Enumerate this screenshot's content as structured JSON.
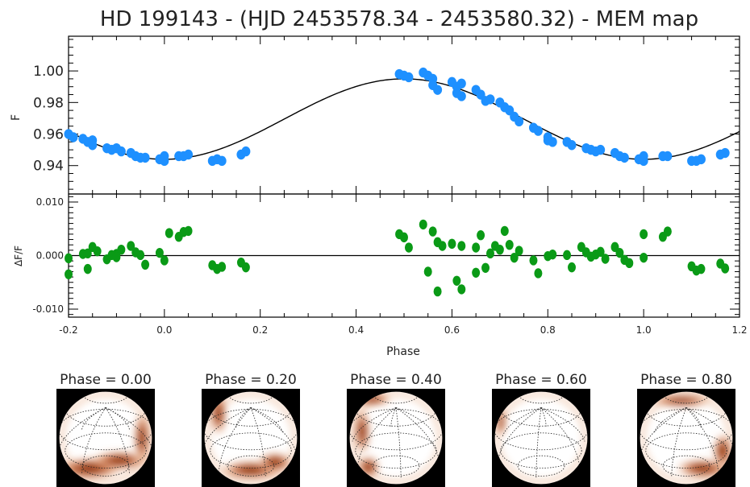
{
  "title": "HD 199143 - (HJD 2453578.34 - 2453580.32) - MEM map",
  "colors": {
    "observed_points": "#1e90ff",
    "residual_points": "#0a9a16",
    "model_curve": "#000000",
    "spot": "#8b2500"
  },
  "chart_data": [
    {
      "type": "scatter",
      "panel": "light-curve",
      "ylabel": "F",
      "xlim": [
        -0.2,
        1.2
      ],
      "ylim": [
        0.922,
        1.022
      ],
      "yticks": [
        "0.94",
        "0.96",
        "0.98",
        "1.00"
      ],
      "ytick_values": [
        0.94,
        0.96,
        0.98,
        1.0
      ],
      "model_curve": {
        "mean": 0.9695,
        "amplitude": 0.0255,
        "peak_phase": 0.5
      },
      "series": [
        {
          "points": [
            [
              -0.2,
              0.96
            ],
            [
              -0.19,
              0.958
            ],
            [
              -0.17,
              0.957
            ],
            [
              -0.16,
              0.955
            ],
            [
              -0.15,
              0.956
            ],
            [
              -0.15,
              0.953
            ],
            [
              -0.12,
              0.951
            ],
            [
              -0.11,
              0.95
            ],
            [
              -0.1,
              0.951
            ],
            [
              -0.09,
              0.949
            ],
            [
              -0.07,
              0.948
            ],
            [
              -0.06,
              0.946
            ],
            [
              -0.05,
              0.945
            ],
            [
              -0.04,
              0.945
            ],
            [
              -0.01,
              0.944
            ],
            [
              0.0,
              0.946
            ],
            [
              0.0,
              0.943
            ],
            [
              0.03,
              0.946
            ],
            [
              0.04,
              0.946
            ],
            [
              0.05,
              0.947
            ],
            [
              0.1,
              0.943
            ],
            [
              0.11,
              0.944
            ],
            [
              0.12,
              0.943
            ],
            [
              0.16,
              0.947
            ],
            [
              0.17,
              0.949
            ],
            [
              0.49,
              0.998
            ],
            [
              0.5,
              0.997
            ],
            [
              0.51,
              0.996
            ],
            [
              0.54,
              0.999
            ],
            [
              0.55,
              0.997
            ],
            [
              0.56,
              0.995
            ],
            [
              0.56,
              0.991
            ],
            [
              0.57,
              0.988
            ],
            [
              0.6,
              0.993
            ],
            [
              0.61,
              0.99
            ],
            [
              0.61,
              0.986
            ],
            [
              0.62,
              0.992
            ],
            [
              0.62,
              0.984
            ],
            [
              0.65,
              0.988
            ],
            [
              0.66,
              0.985
            ],
            [
              0.67,
              0.981
            ],
            [
              0.68,
              0.982
            ],
            [
              0.7,
              0.98
            ],
            [
              0.71,
              0.977
            ],
            [
              0.72,
              0.975
            ],
            [
              0.73,
              0.971
            ],
            [
              0.74,
              0.968
            ],
            [
              0.77,
              0.964
            ],
            [
              0.78,
              0.962
            ],
            [
              0.8,
              0.958
            ],
            [
              0.8,
              0.956
            ],
            [
              0.81,
              0.955
            ],
            [
              0.84,
              0.955
            ],
            [
              0.85,
              0.953
            ],
            [
              0.88,
              0.951
            ],
            [
              0.89,
              0.95
            ],
            [
              0.9,
              0.949
            ],
            [
              0.91,
              0.95
            ],
            [
              0.94,
              0.948
            ],
            [
              0.95,
              0.946
            ],
            [
              0.96,
              0.945
            ],
            [
              0.99,
              0.944
            ],
            [
              1.0,
              0.943
            ],
            [
              1.0,
              0.946
            ],
            [
              1.04,
              0.946
            ],
            [
              1.05,
              0.946
            ],
            [
              1.1,
              0.943
            ],
            [
              1.11,
              0.943
            ],
            [
              1.12,
              0.944
            ],
            [
              1.16,
              0.947
            ],
            [
              1.17,
              0.948
            ]
          ]
        }
      ]
    },
    {
      "type": "scatter",
      "panel": "residuals",
      "ylabel": "ΔF/F",
      "xlabel": "Phase",
      "xlim": [
        -0.2,
        1.2
      ],
      "ylim": [
        -0.0115,
        0.0115
      ],
      "yticks": [
        "-0.010",
        "0.000",
        "0.010"
      ],
      "ytick_values": [
        -0.01,
        0.0,
        0.01
      ],
      "xticks": [
        "-0.2",
        "0.0",
        "0.2",
        "0.4",
        "0.6",
        "0.8",
        "1.0",
        "1.2"
      ],
      "xtick_values": [
        -0.2,
        0.0,
        0.2,
        0.4,
        0.6,
        0.8,
        1.0,
        1.2
      ],
      "series": [
        {
          "points": [
            [
              -0.2,
              -0.0005
            ],
            [
              -0.2,
              -0.0035
            ],
            [
              -0.17,
              0.0003
            ],
            [
              -0.16,
              0.0004
            ],
            [
              -0.16,
              -0.0025
            ],
            [
              -0.15,
              0.0016
            ],
            [
              -0.14,
              0.0008
            ],
            [
              -0.12,
              -0.0007
            ],
            [
              -0.11,
              0.0001
            ],
            [
              -0.1,
              0.0003
            ],
            [
              -0.1,
              -0.0003
            ],
            [
              -0.09,
              0.0011
            ],
            [
              -0.07,
              0.0018
            ],
            [
              -0.06,
              0.0006
            ],
            [
              -0.05,
              0.0001
            ],
            [
              -0.04,
              -0.0017
            ],
            [
              -0.01,
              0.0005
            ],
            [
              0.0,
              -0.0009
            ],
            [
              0.01,
              0.0042
            ],
            [
              0.03,
              0.0035
            ],
            [
              0.04,
              0.0044
            ],
            [
              0.05,
              0.0046
            ],
            [
              0.1,
              -0.0018
            ],
            [
              0.11,
              -0.0025
            ],
            [
              0.12,
              -0.0021
            ],
            [
              0.16,
              -0.0013
            ],
            [
              0.17,
              -0.0022
            ],
            [
              0.49,
              0.004
            ],
            [
              0.5,
              0.0034
            ],
            [
              0.51,
              0.0015
            ],
            [
              0.54,
              0.0058
            ],
            [
              0.55,
              -0.003
            ],
            [
              0.56,
              0.0045
            ],
            [
              0.57,
              0.0025
            ],
            [
              0.57,
              -0.0067
            ],
            [
              0.58,
              0.0018
            ],
            [
              0.6,
              0.0022
            ],
            [
              0.61,
              -0.0047
            ],
            [
              0.62,
              0.0018
            ],
            [
              0.62,
              -0.0063
            ],
            [
              0.65,
              0.0015
            ],
            [
              0.65,
              -0.0032
            ],
            [
              0.66,
              0.0038
            ],
            [
              0.67,
              -0.0023
            ],
            [
              0.68,
              0.0004
            ],
            [
              0.69,
              0.0018
            ],
            [
              0.7,
              0.0011
            ],
            [
              0.71,
              0.0046
            ],
            [
              0.72,
              0.002
            ],
            [
              0.73,
              -0.0004
            ],
            [
              0.74,
              0.0009
            ],
            [
              0.77,
              -0.0009
            ],
            [
              0.78,
              -0.0033
            ],
            [
              0.8,
              -0.0001
            ],
            [
              0.81,
              0.0002
            ],
            [
              0.84,
              0.0001
            ],
            [
              0.85,
              -0.0022
            ],
            [
              0.87,
              0.0016
            ],
            [
              0.88,
              0.0006
            ],
            [
              0.89,
              -0.0002
            ],
            [
              0.9,
              0.0002
            ],
            [
              0.91,
              0.0007
            ],
            [
              0.92,
              -0.0006
            ],
            [
              0.94,
              0.0016
            ],
            [
              0.95,
              0.0005
            ],
            [
              0.96,
              -0.0008
            ],
            [
              0.97,
              -0.0014
            ],
            [
              1.0,
              -0.0004
            ],
            [
              1.0,
              0.004
            ],
            [
              1.04,
              0.0035
            ],
            [
              1.05,
              0.0045
            ],
            [
              1.1,
              -0.002
            ],
            [
              1.11,
              -0.0028
            ],
            [
              1.12,
              -0.0025
            ],
            [
              1.16,
              -0.0015
            ],
            [
              1.17,
              -0.0024
            ]
          ]
        }
      ]
    }
  ],
  "maps": [
    {
      "label": "Phase = 0.00",
      "phase": 0.0
    },
    {
      "label": "Phase = 0.20",
      "phase": 0.2
    },
    {
      "label": "Phase = 0.40",
      "phase": 0.4
    },
    {
      "label": "Phase = 0.60",
      "phase": 0.6
    },
    {
      "label": "Phase = 0.80",
      "phase": 0.8
    }
  ]
}
